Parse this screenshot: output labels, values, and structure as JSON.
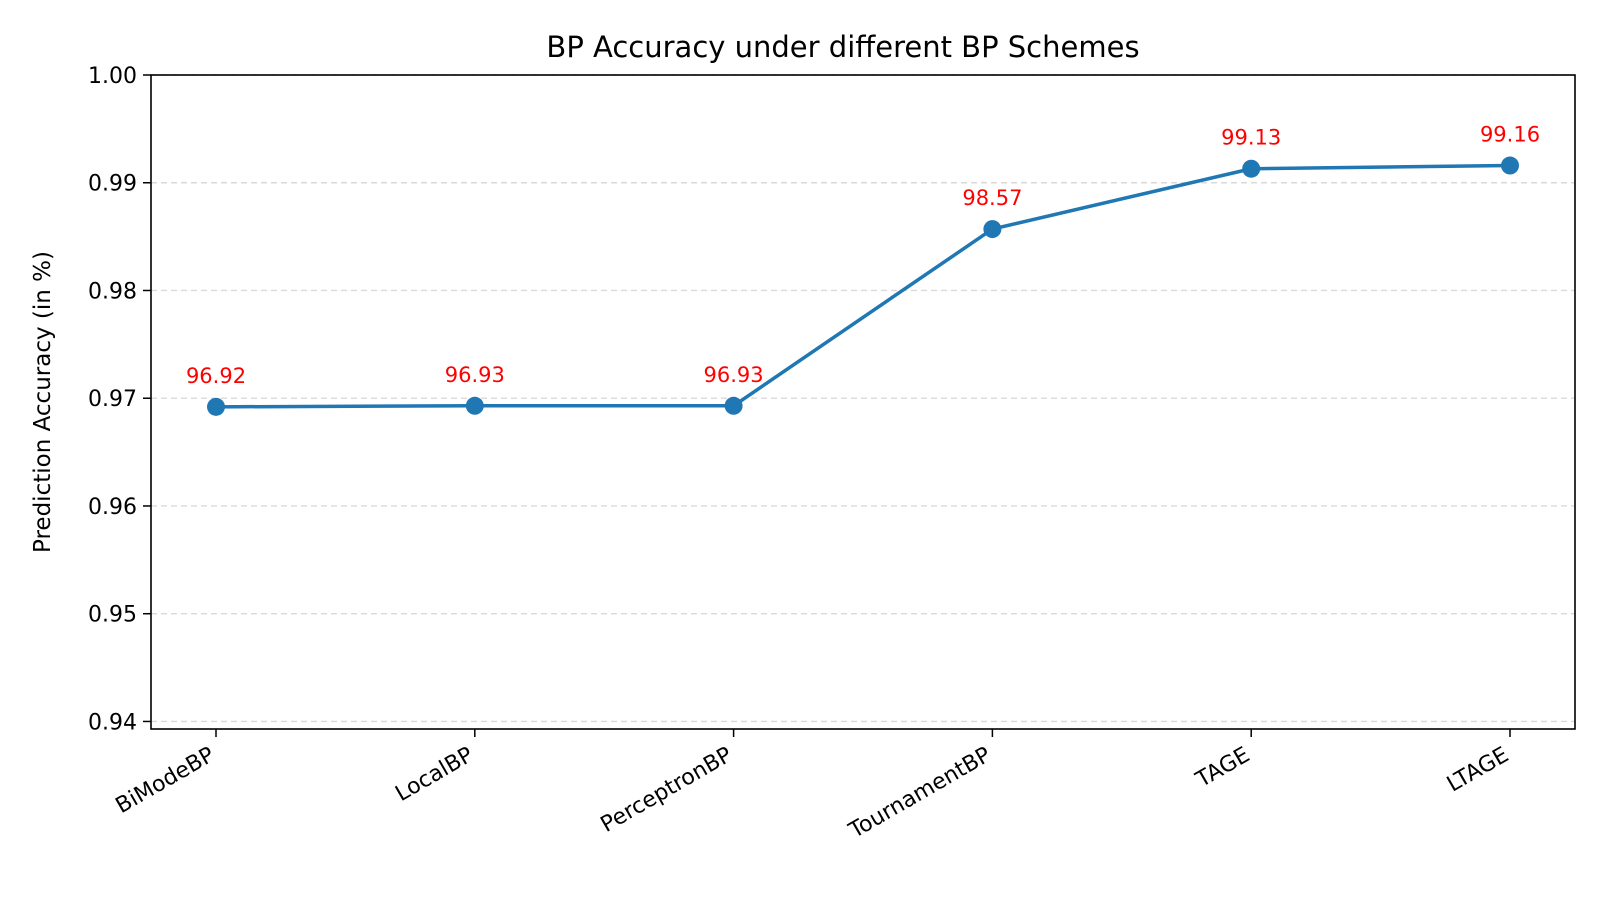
{
  "chart_data": {
    "type": "line",
    "title": "BP Accuracy under different BP Schemes",
    "xlabel": "",
    "ylabel": "Prediction Accuracy (in %)",
    "categories": [
      "BiModeBP",
      "LocalBP",
      "PerceptronBP",
      "TournamentBP",
      "TAGE",
      "LTAGE"
    ],
    "values": [
      0.9692,
      0.9693,
      0.9693,
      0.9857,
      0.9913,
      0.9916
    ],
    "data_labels": [
      "96.92",
      "96.93",
      "96.93",
      "98.57",
      "99.13",
      "99.16"
    ],
    "ylim": [
      0.9393,
      1.0
    ],
    "yticks": [
      0.94,
      0.95,
      0.96,
      0.97,
      0.98,
      0.99,
      1.0
    ],
    "ytick_labels": [
      "0.94",
      "0.95",
      "0.96",
      "0.97",
      "0.98",
      "0.99",
      "1.00"
    ],
    "grid": "y-dashed",
    "legend": "none",
    "colors": {
      "line": "#1f77b4",
      "data_label": "#ff0000",
      "grid": "#d9d9d9",
      "axis": "#000000"
    }
  }
}
